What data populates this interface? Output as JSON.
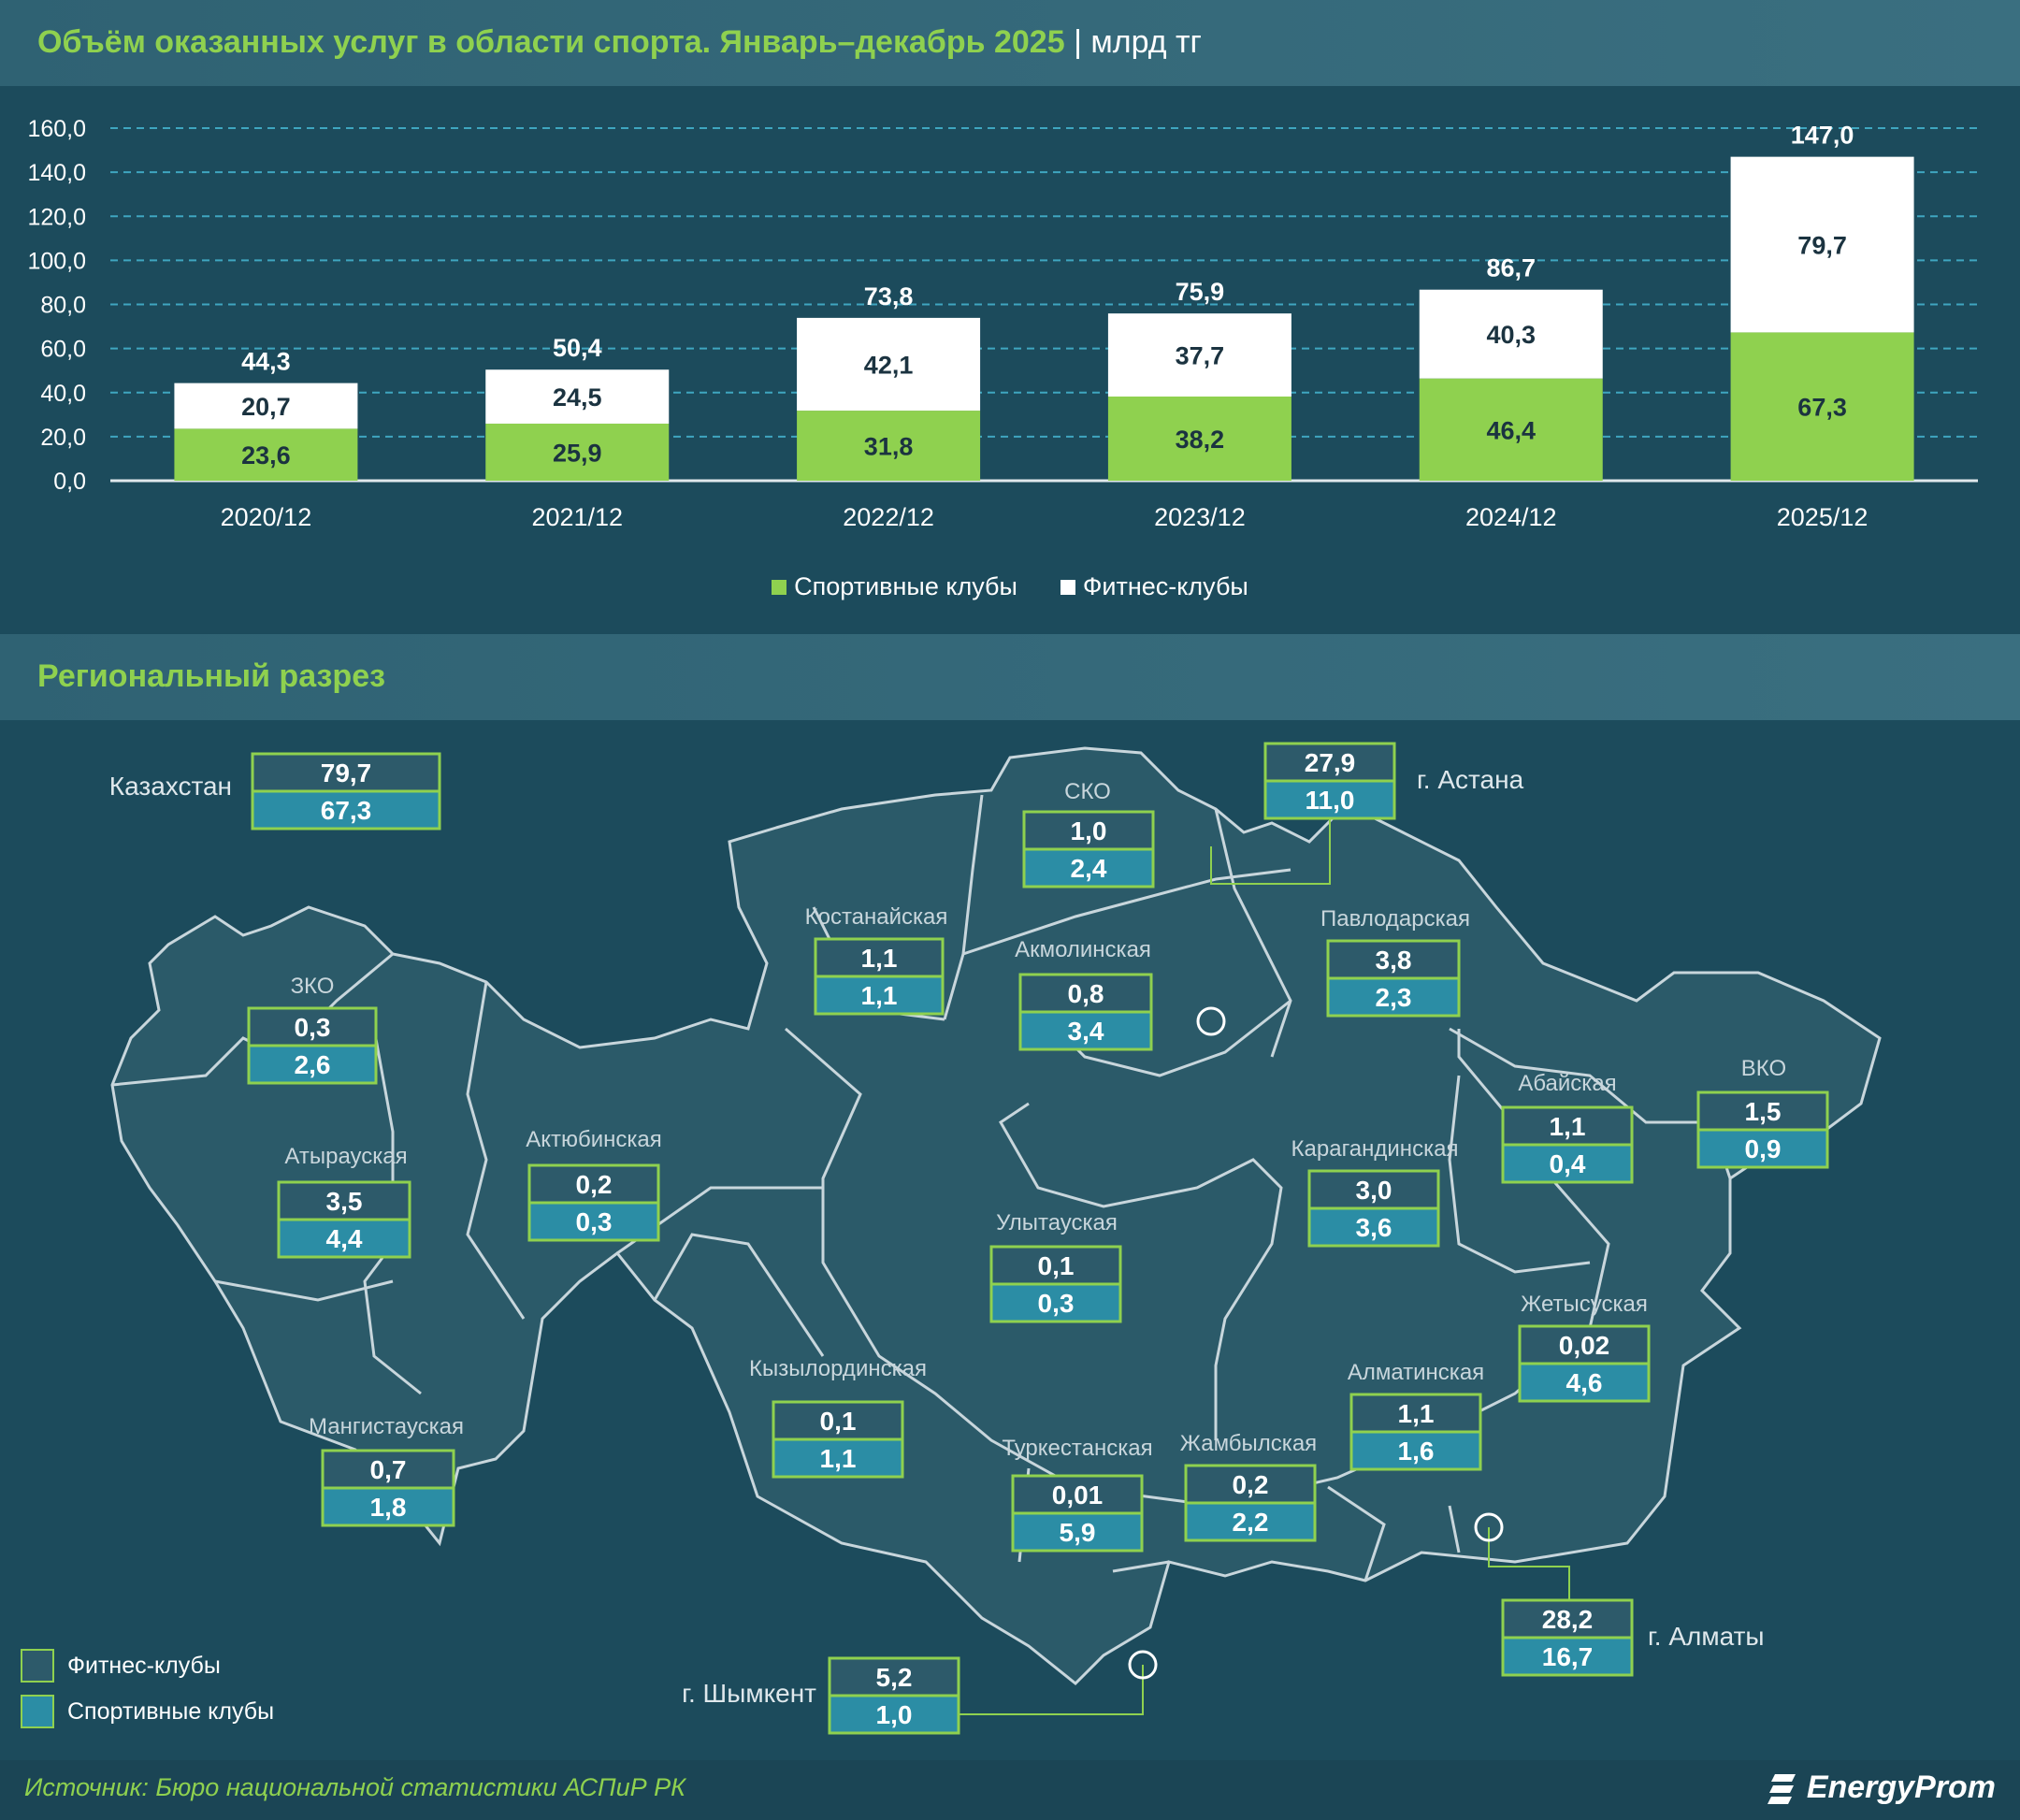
{
  "header": {
    "title": "Объём оказанных услуг в области спорта. Январь–декабрь 2025",
    "unit": "| млрд тг"
  },
  "section": {
    "title": "Региональный разрез"
  },
  "colors": {
    "sport": "#8fd14f",
    "fitness": "#ffffff",
    "background": "#1c4b5c",
    "fitness_box": "#2d5a6a",
    "sport_box": "#2b8da5"
  },
  "chart_data": {
    "type": "bar",
    "stacked": true,
    "categories": [
      "2020/12",
      "2021/12",
      "2022/12",
      "2023/12",
      "2024/12",
      "2025/12"
    ],
    "series": [
      {
        "name": "Спортивные клубы",
        "values": [
          23.6,
          25.9,
          31.8,
          38.2,
          46.4,
          67.3
        ]
      },
      {
        "name": "Фитнес-клубы",
        "values": [
          20.7,
          24.5,
          42.1,
          37.7,
          40.3,
          79.7
        ]
      }
    ],
    "labels": {
      "sport": [
        "23,6",
        "25,9",
        "31,8",
        "38,2",
        "46,4",
        "67,3"
      ],
      "fitness": [
        "20,7",
        "24,5",
        "42,1",
        "37,7",
        "40,3",
        "79,7"
      ],
      "totals": [
        "44,3",
        "50,4",
        "73,8",
        "75,9",
        "86,7",
        "147,0"
      ]
    },
    "ylim": [
      0,
      160
    ],
    "yticks": [
      "0,0",
      "20,0",
      "40,0",
      "60,0",
      "80,0",
      "100,0",
      "120,0",
      "140,0",
      "160,0"
    ],
    "grid": true,
    "legend": "bottom"
  },
  "legend": {
    "sport": "Спортивные клубы",
    "fitness": "Фитнес-клубы"
  },
  "map": {
    "regions": [
      {
        "name": "Казахстан",
        "fitness": "79,7",
        "sport": "67,3"
      },
      {
        "name": "СКО",
        "fitness": "1,0",
        "sport": "2,4"
      },
      {
        "name": "г. Астана",
        "fitness": "27,9",
        "sport": "11,0"
      },
      {
        "name": "Костанайская",
        "fitness": "1,1",
        "sport": "1,1"
      },
      {
        "name": "Акмолинская",
        "fitness": "0,8",
        "sport": "3,4"
      },
      {
        "name": "Павлодарская",
        "fitness": "3,8",
        "sport": "2,3"
      },
      {
        "name": "ЗКО",
        "fitness": "0,3",
        "sport": "2,6"
      },
      {
        "name": "Атырауская",
        "fitness": "3,5",
        "sport": "4,4"
      },
      {
        "name": "Актюбинская",
        "fitness": "0,2",
        "sport": "0,3"
      },
      {
        "name": "Абайская",
        "fitness": "1,1",
        "sport": "0,4"
      },
      {
        "name": "ВКО",
        "fitness": "1,5",
        "sport": "0,9"
      },
      {
        "name": "Карагандинская",
        "fitness": "3,0",
        "sport": "3,6"
      },
      {
        "name": "Улытауская",
        "fitness": "0,1",
        "sport": "0,3"
      },
      {
        "name": "Жетысуская",
        "fitness": "0,02",
        "sport": "4,6"
      },
      {
        "name": "Кызылординская",
        "fitness": "0,1",
        "sport": "1,1"
      },
      {
        "name": "Алматинская",
        "fitness": "1,1",
        "sport": "1,6"
      },
      {
        "name": "Мангистауская",
        "fitness": "0,7",
        "sport": "1,8"
      },
      {
        "name": "Туркестанская",
        "fitness": "0,01",
        "sport": "5,9"
      },
      {
        "name": "Жамбылская",
        "fitness": "0,2",
        "sport": "2,2"
      },
      {
        "name": "г. Алматы",
        "fitness": "28,2",
        "sport": "16,7"
      },
      {
        "name": "г. Шымкент",
        "fitness": "5,2",
        "sport": "1,0"
      }
    ],
    "legend": {
      "fitness": "Фитнес-клубы",
      "sport": "Спортивные клубы"
    }
  },
  "footer": {
    "source": "Источник: Бюро национальной статистики АСПиР РК",
    "brand": "EnergyProm"
  }
}
